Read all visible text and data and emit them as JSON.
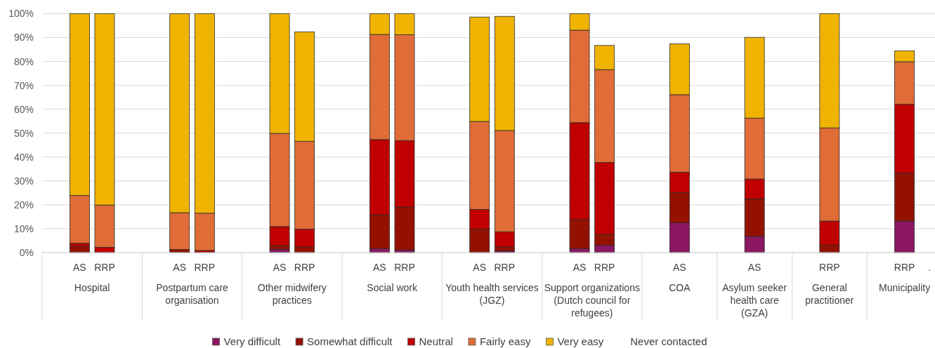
{
  "chart_data": {
    "type": "bar",
    "stacked": true,
    "grid": "y",
    "legend": "bottom",
    "categories": [
      null,
      "AS",
      "RRP",
      null,
      null,
      "AS",
      "RRP",
      null,
      null,
      "AS",
      "RRP",
      null,
      null,
      "AS",
      "RRP",
      null,
      null,
      "AS",
      "RRP",
      null,
      null,
      "AS",
      "RRP",
      null,
      null,
      "AS",
      null,
      null,
      "AS",
      null,
      null,
      "RRP",
      null,
      null,
      "RRP",
      "."
    ],
    "annotations": [
      "Hospital",
      "Postpartum care organisation",
      "Other midwifery practices",
      "Social work",
      "Youth health services (JGZ)",
      "Support organizations (Dutch council for refugees)",
      "COA",
      "Asylum seeker health care (GZA)",
      "General practitioner",
      "Municipality"
    ],
    "ylim": [
      0,
      100
    ],
    "yticks": [
      {
        "value": 0,
        "label": "0%"
      },
      {
        "value": 10,
        "label": "10%"
      },
      {
        "value": 20,
        "label": "20%"
      },
      {
        "value": 30,
        "label": "30%"
      },
      {
        "value": 40,
        "label": "40%"
      },
      {
        "value": 50,
        "label": "50%"
      },
      {
        "value": 60,
        "label": "60%"
      },
      {
        "value": 70,
        "label": "70%"
      },
      {
        "value": 80,
        "label": "80%"
      },
      {
        "value": 90,
        "label": "90%"
      },
      {
        "value": 100,
        "label": "100%"
      }
    ],
    "series": [
      {
        "name": "Very difficult",
        "color": "#8b1762",
        "values": [
          null,
          0,
          0,
          null,
          null,
          0,
          0,
          null,
          null,
          1.4,
          0,
          null,
          null,
          1.7,
          1.1,
          null,
          null,
          0,
          0.7,
          null,
          null,
          1.7,
          3.1,
          null,
          null,
          12.5,
          null,
          null,
          6.8,
          null,
          null,
          0,
          null,
          null,
          13.2,
          null
        ]
      },
      {
        "name": "Somewhat difficult",
        "color": "#941100",
        "values": [
          null,
          2.6,
          0,
          null,
          null,
          1.3,
          0,
          null,
          null,
          1.5,
          2.3,
          null,
          null,
          14.1,
          17.9,
          null,
          null,
          9.7,
          1.6,
          null,
          null,
          12.2,
          4.5,
          null,
          null,
          12.6,
          null,
          null,
          15.6,
          null,
          null,
          3.1,
          null,
          null,
          20.0,
          null
        ]
      },
      {
        "name": "Neutral",
        "color": "#c00000",
        "values": [
          null,
          1.3,
          2.2,
          null,
          null,
          0,
          0.9,
          null,
          null,
          8.0,
          7.5,
          null,
          null,
          31.5,
          27.9,
          null,
          null,
          8.4,
          6.4,
          null,
          null,
          40.5,
          30.1,
          null,
          null,
          8.6,
          null,
          null,
          8.4,
          null,
          null,
          10.1,
          null,
          null,
          28.9,
          null
        ]
      },
      {
        "name": "Fairly easy",
        "color": "#e06c37",
        "values": [
          null,
          20.0,
          17.7,
          null,
          null,
          15.4,
          15.6,
          null,
          null,
          39.0,
          36.8,
          null,
          null,
          44.0,
          44.3,
          null,
          null,
          36.8,
          42.4,
          null,
          null,
          38.7,
          38.9,
          null,
          null,
          32.4,
          null,
          null,
          25.5,
          null,
          null,
          39.0,
          null,
          null,
          17.8,
          null
        ]
      },
      {
        "name": "Very easy",
        "color": "#f0b400",
        "values": [
          null,
          76.1,
          80.1,
          null,
          null,
          83.3,
          83.5,
          null,
          null,
          50.1,
          45.8,
          null,
          null,
          8.7,
          8.8,
          null,
          null,
          43.7,
          47.8,
          null,
          null,
          6.9,
          10.1,
          null,
          null,
          21.3,
          null,
          null,
          33.8,
          null,
          null,
          47.8,
          null,
          null,
          4.5,
          null
        ]
      },
      {
        "name": "Never contacted",
        "values": [
          null,
          null,
          null,
          null,
          null,
          null,
          null,
          null,
          null,
          null,
          null,
          null,
          null,
          null,
          null,
          null,
          null,
          null,
          null,
          null,
          null,
          null,
          null,
          null,
          null,
          null,
          null,
          null,
          null,
          null,
          null,
          null,
          null,
          null,
          null,
          null
        ]
      }
    ]
  }
}
